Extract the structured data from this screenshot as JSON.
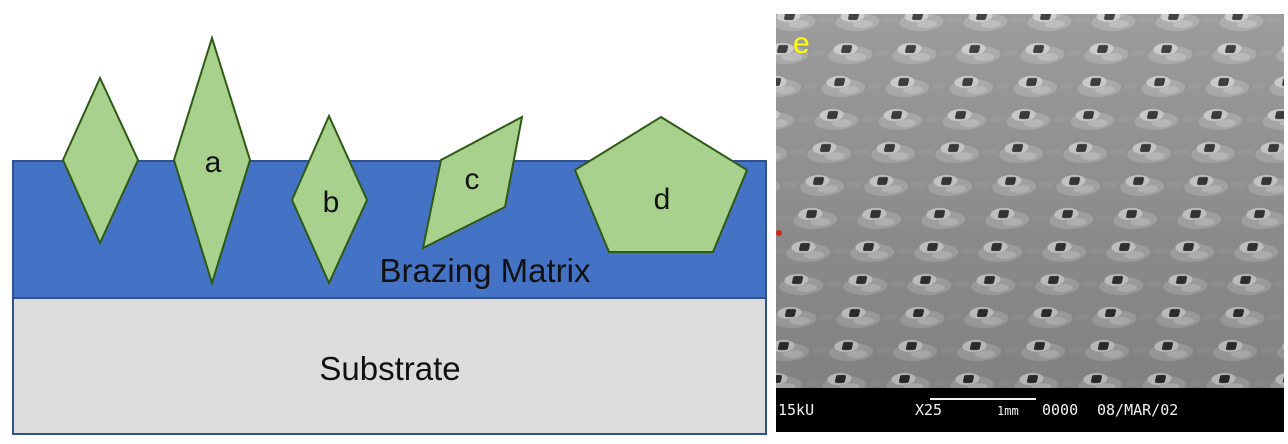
{
  "diagram": {
    "matrix_label": "Brazing Matrix",
    "substrate_label": "Substrate",
    "grains": [
      {
        "id": "unlabeled",
        "label": ""
      },
      {
        "id": "a",
        "label": "a"
      },
      {
        "id": "b",
        "label": "b"
      },
      {
        "id": "c",
        "label": "c"
      },
      {
        "id": "d",
        "label": "d"
      }
    ],
    "colors": {
      "matrix": "#4472c4",
      "substrate": "#dcdcdc",
      "grain_fill": "#a9d18e",
      "grain_stroke": "#2e5a14",
      "outline": "#2f528f"
    }
  },
  "micrograph": {
    "panel_label": "e",
    "panel_label_color": "#ffff00",
    "databar": {
      "voltage": "15kU",
      "magnification": "X25",
      "scale": "1mm",
      "image_number": "0000",
      "date": "08/MAR/02"
    }
  }
}
